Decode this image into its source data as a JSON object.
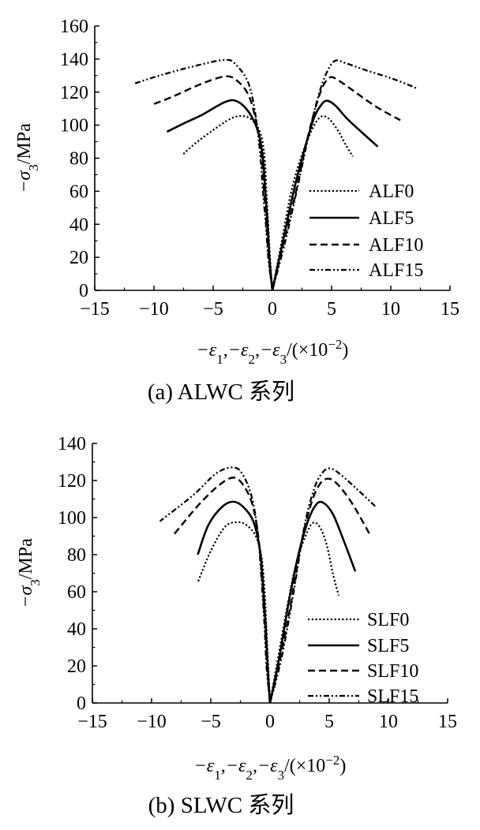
{
  "chart_data": [
    {
      "type": "line",
      "caption": "(a) ALWC 系列",
      "xlabel_parts": [
        "−ε",
        "1",
        ",−ε",
        "2",
        ",−ε",
        "3",
        "/(×10",
        "−2",
        ")"
      ],
      "ylabel_parts": [
        "−σ",
        "3",
        "/MPa"
      ],
      "xlim": [
        -15,
        15
      ],
      "ylim": [
        0,
        160
      ],
      "xticks": [
        "−15",
        "−10",
        "−5",
        "0",
        "5",
        "10",
        "15"
      ],
      "xtick_values": [
        -15,
        -10,
        -5,
        0,
        5,
        10,
        15
      ],
      "yticks": [
        "0",
        "20",
        "40",
        "60",
        "80",
        "100",
        "120",
        "140",
        "160"
      ],
      "ytick_values": [
        0,
        20,
        40,
        60,
        80,
        100,
        120,
        140,
        160
      ],
      "legend_position": "lower-right",
      "series": [
        {
          "name": "ALF0",
          "style": "dotted",
          "lateral": [
            [
              0,
              0
            ],
            [
              -0.2,
              20
            ],
            [
              -0.35,
              40
            ],
            [
              -0.5,
              60
            ],
            [
              -0.65,
              80
            ],
            [
              -1.0,
              95
            ],
            [
              -1.7,
              103
            ],
            [
              -2.5,
              105.5
            ],
            [
              -3.5,
              104
            ],
            [
              -5,
              97
            ],
            [
              -6.5,
              89
            ],
            [
              -7.6,
              82
            ]
          ],
          "axial": [
            [
              0,
              0
            ],
            [
              0.8,
              30
            ],
            [
              1.6,
              60
            ],
            [
              2.4,
              80
            ],
            [
              3.2,
              95
            ],
            [
              3.8,
              103
            ],
            [
              4.3,
              105.5
            ],
            [
              4.9,
              103
            ],
            [
              5.6,
              96
            ],
            [
              6.2,
              88
            ],
            [
              6.8,
              81
            ]
          ]
        },
        {
          "name": "ALF5",
          "style": "solid",
          "lateral": [
            [
              0,
              0
            ],
            [
              -0.25,
              20
            ],
            [
              -0.4,
              40
            ],
            [
              -0.6,
              60
            ],
            [
              -0.8,
              80
            ],
            [
              -1.2,
              96
            ],
            [
              -2.0,
              108
            ],
            [
              -3.0,
              114.5
            ],
            [
              -4.0,
              114
            ],
            [
              -6,
              106
            ],
            [
              -7.5,
              101
            ],
            [
              -8.9,
              96
            ]
          ],
          "axial": [
            [
              0,
              0
            ],
            [
              0.9,
              30
            ],
            [
              1.8,
              60
            ],
            [
              2.7,
              85
            ],
            [
              3.5,
              104
            ],
            [
              4.1,
              112
            ],
            [
              4.6,
              114.8
            ],
            [
              5.3,
              112
            ],
            [
              6.3,
              104
            ],
            [
              7.5,
              96
            ],
            [
              8.9,
              87
            ]
          ]
        },
        {
          "name": "ALF10",
          "style": "dashed",
          "lateral": [
            [
              0,
              0
            ],
            [
              -0.3,
              20
            ],
            [
              -0.5,
              40
            ],
            [
              -0.7,
              60
            ],
            [
              -0.9,
              80
            ],
            [
              -1.3,
              100
            ],
            [
              -2.0,
              118
            ],
            [
              -3.0,
              127
            ],
            [
              -4.0,
              129.5
            ],
            [
              -6,
              125
            ],
            [
              -8.5,
              117
            ],
            [
              -10.3,
              112
            ]
          ],
          "axial": [
            [
              0,
              0
            ],
            [
              1.0,
              30
            ],
            [
              2.0,
              60
            ],
            [
              2.9,
              90
            ],
            [
              3.7,
              112
            ],
            [
              4.3,
              124
            ],
            [
              4.9,
              129
            ],
            [
              5.6,
              127
            ],
            [
              7.0,
              120
            ],
            [
              8.8,
              111
            ],
            [
              10.8,
              103
            ]
          ]
        },
        {
          "name": "ALF15",
          "style": "dashdotdot",
          "lateral": [
            [
              0,
              0
            ],
            [
              -0.35,
              20
            ],
            [
              -0.55,
              40
            ],
            [
              -0.8,
              60
            ],
            [
              -1.0,
              80
            ],
            [
              -1.4,
              105
            ],
            [
              -2.0,
              125
            ],
            [
              -3.0,
              136
            ],
            [
              -4.0,
              139.5
            ],
            [
              -7,
              135
            ],
            [
              -10,
              129
            ],
            [
              -11.7,
              125
            ]
          ],
          "axial": [
            [
              0,
              0
            ],
            [
              1.1,
              30
            ],
            [
              2.2,
              65
            ],
            [
              3.1,
              95
            ],
            [
              3.9,
              118
            ],
            [
              4.6,
              132
            ],
            [
              5.3,
              139
            ],
            [
              6.2,
              137.5
            ],
            [
              8.0,
              133
            ],
            [
              10.2,
              128
            ],
            [
              12.3,
              122
            ]
          ]
        }
      ]
    },
    {
      "type": "line",
      "caption": "(b) SLWC 系列",
      "xlabel_parts": [
        "−ε",
        "1",
        ",−ε",
        "2",
        ",−ε",
        "3",
        "/(×10",
        "−2",
        ")"
      ],
      "ylabel_parts": [
        "−σ",
        "3",
        "/MPa"
      ],
      "xlim": [
        -15,
        15
      ],
      "ylim": [
        0,
        140
      ],
      "xticks": [
        "−15",
        "−10",
        "−5",
        "0",
        "5",
        "10",
        "15"
      ],
      "xtick_values": [
        -15,
        -10,
        -5,
        0,
        5,
        10,
        15
      ],
      "yticks": [
        "0",
        "20",
        "40",
        "60",
        "80",
        "100",
        "120",
        "140"
      ],
      "ytick_values": [
        0,
        20,
        40,
        60,
        80,
        100,
        120,
        140
      ],
      "legend_position": "lower-right",
      "series": [
        {
          "name": "SLF0",
          "style": "dotted",
          "lateral": [
            [
              0,
              0
            ],
            [
              -0.15,
              20
            ],
            [
              -0.3,
              40
            ],
            [
              -0.45,
              60
            ],
            [
              -0.7,
              78
            ],
            [
              -1.2,
              90
            ],
            [
              -2.0,
              96
            ],
            [
              -2.8,
              97.5
            ],
            [
              -3.8,
              95
            ],
            [
              -5.0,
              82
            ],
            [
              -6.1,
              65
            ]
          ],
          "axial": [
            [
              0,
              0
            ],
            [
              0.7,
              25
            ],
            [
              1.4,
              50
            ],
            [
              2.2,
              75
            ],
            [
              3.0,
              90
            ],
            [
              3.6,
              97
            ],
            [
              4.2,
              95
            ],
            [
              4.8,
              85
            ],
            [
              5.3,
              70
            ],
            [
              5.8,
              58
            ]
          ]
        },
        {
          "name": "SLF5",
          "style": "solid",
          "lateral": [
            [
              0,
              0
            ],
            [
              -0.2,
              20
            ],
            [
              -0.35,
              40
            ],
            [
              -0.55,
              60
            ],
            [
              -0.8,
              80
            ],
            [
              -1.3,
              96
            ],
            [
              -2.0,
              104
            ],
            [
              -3.0,
              108.5
            ],
            [
              -4.0,
              106
            ],
            [
              -5.2,
              96
            ],
            [
              -6.1,
              80
            ]
          ],
          "axial": [
            [
              0,
              0
            ],
            [
              0.8,
              25
            ],
            [
              1.6,
              55
            ],
            [
              2.4,
              80
            ],
            [
              3.2,
              98
            ],
            [
              3.9,
              107
            ],
            [
              4.5,
              108
            ],
            [
              5.3,
              102
            ],
            [
              6.2,
              88
            ],
            [
              7.2,
              71
            ]
          ]
        },
        {
          "name": "SLF10",
          "style": "dashed",
          "lateral": [
            [
              0,
              0
            ],
            [
              -0.25,
              20
            ],
            [
              -0.4,
              40
            ],
            [
              -0.6,
              60
            ],
            [
              -0.9,
              85
            ],
            [
              -1.4,
              105
            ],
            [
              -2.1,
              116
            ],
            [
              -3.0,
              121.5
            ],
            [
              -4.2,
              118
            ],
            [
              -6.0,
              107
            ],
            [
              -8.1,
              91
            ]
          ],
          "axial": [
            [
              0,
              0
            ],
            [
              0.9,
              25
            ],
            [
              1.8,
              55
            ],
            [
              2.7,
              88
            ],
            [
              3.5,
              108
            ],
            [
              4.2,
              118
            ],
            [
              4.9,
              121
            ],
            [
              5.7,
              118
            ],
            [
              7.0,
              107
            ],
            [
              8.5,
              90
            ]
          ]
        },
        {
          "name": "SLF15",
          "style": "dashdotdot",
          "lateral": [
            [
              0,
              0
            ],
            [
              -0.3,
              20
            ],
            [
              -0.45,
              40
            ],
            [
              -0.65,
              60
            ],
            [
              -1.0,
              90
            ],
            [
              -1.5,
              110
            ],
            [
              -2.2,
              122
            ],
            [
              -3.0,
              127
            ],
            [
              -4.5,
              124
            ],
            [
              -6.5,
              112
            ],
            [
              -9.3,
              98
            ]
          ],
          "axial": [
            [
              0,
              0
            ],
            [
              1.0,
              25
            ],
            [
              2.0,
              60
            ],
            [
              2.9,
              95
            ],
            [
              3.7,
              115
            ],
            [
              4.4,
              124
            ],
            [
              5.1,
              126.5
            ],
            [
              6.0,
              123
            ],
            [
              7.4,
              115
            ],
            [
              8.9,
              106
            ]
          ]
        }
      ]
    }
  ]
}
